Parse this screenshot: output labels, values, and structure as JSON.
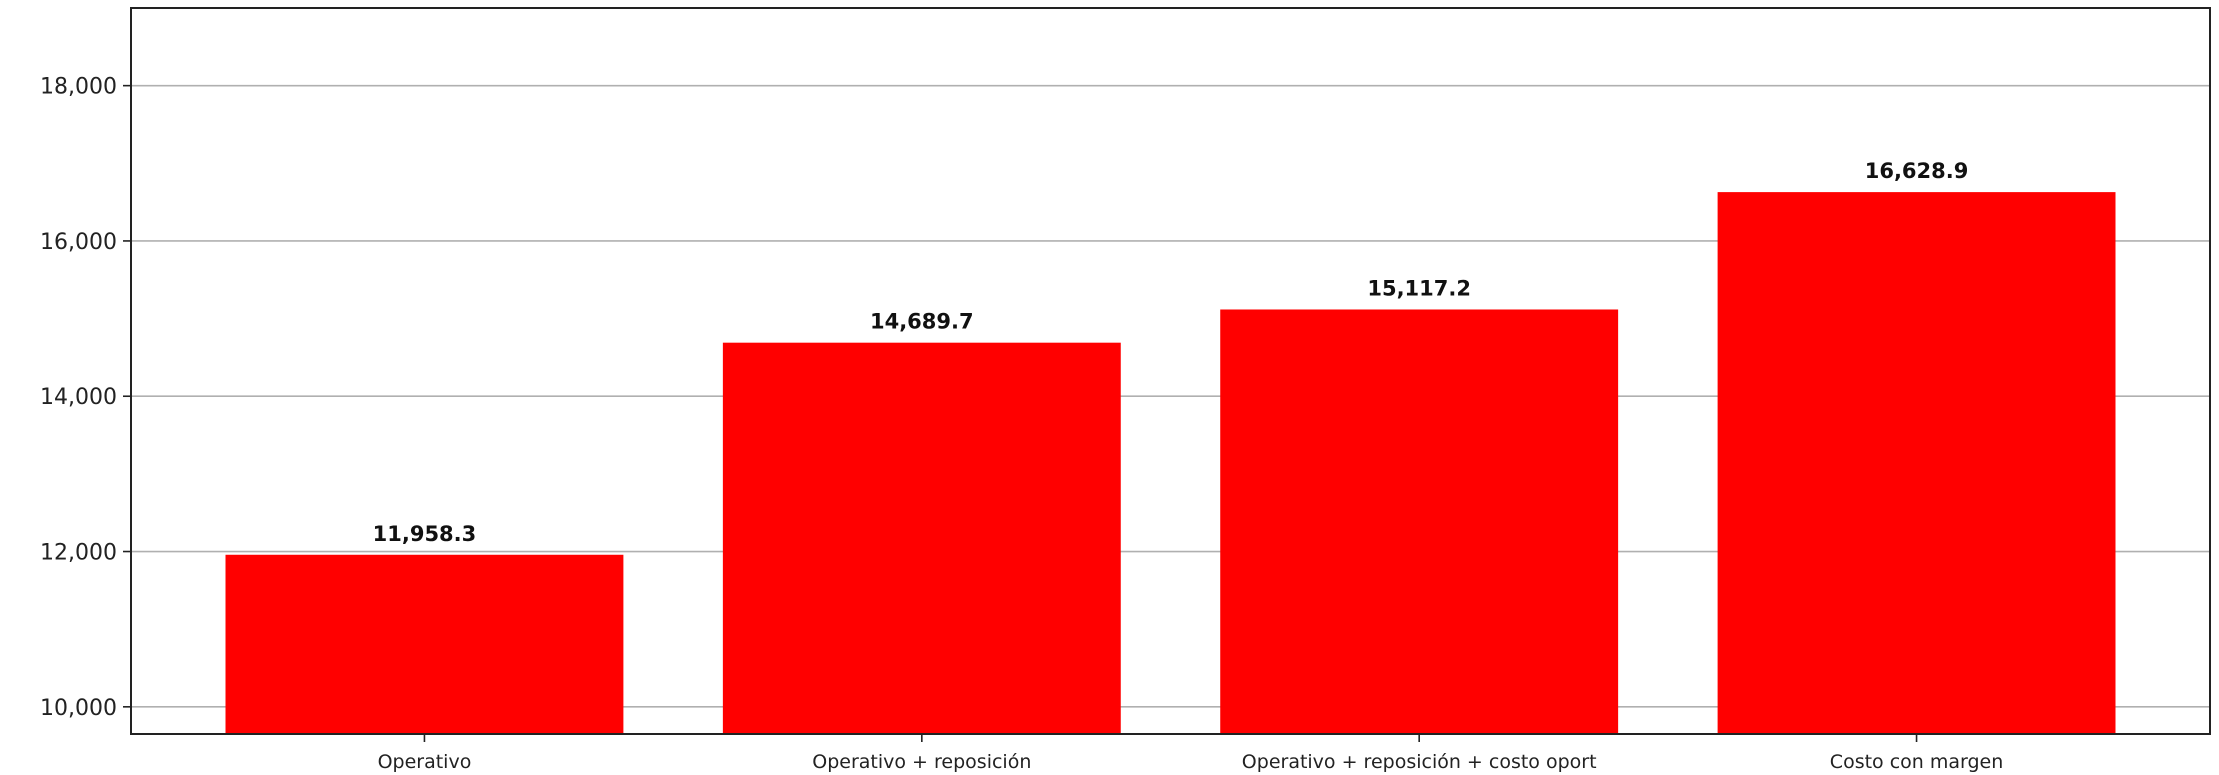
{
  "chart_data": {
    "type": "bar",
    "categories": [
      "Operativo",
      "Operativo + reposición",
      "Operativo + reposición + costo oport",
      "Costo con margen"
    ],
    "values": [
      11958.3,
      14689.7,
      15117.2,
      16628.9
    ],
    "value_labels": [
      "11,958.3",
      "14,689.7",
      "15,117.2",
      "16,628.9"
    ],
    "yticks": [
      10000,
      12000,
      14000,
      16000,
      18000
    ],
    "ytick_labels": [
      "10,000",
      "12,000",
      "14,000",
      "16,000",
      "18,000"
    ],
    "ylim": [
      9650,
      19000
    ],
    "bar_color": "#ff0000",
    "grid": "horizontal",
    "title": "",
    "xlabel": "",
    "ylabel": ""
  }
}
